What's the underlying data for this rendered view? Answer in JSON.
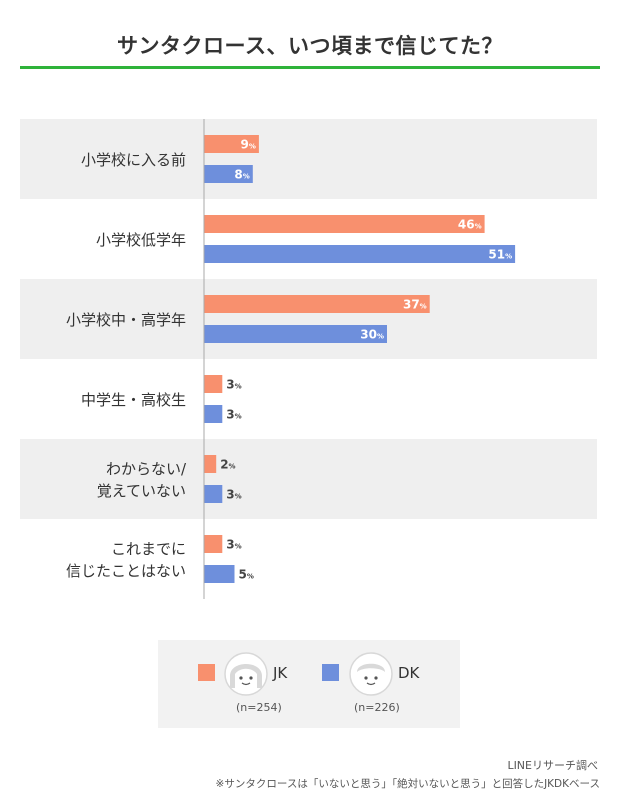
{
  "colors": {
    "background": "#ffffff",
    "band": "#efefef",
    "jk": "#f8906e",
    "dk": "#6e8fdc",
    "accent_rule": "#2eb33a",
    "axis": "#aaaaaa"
  },
  "chart_data": {
    "type": "bar",
    "orientation": "horizontal",
    "title": "サンタクロース、いつ頃まで信じてた？",
    "categories": [
      [
        "小学校に入る前"
      ],
      [
        "小学校低学年"
      ],
      [
        "小学校中・高学年"
      ],
      [
        "中学生・高校生"
      ],
      [
        "わからない/",
        "覚えていない"
      ],
      [
        "これまでに",
        "信じたことはない"
      ]
    ],
    "series": [
      {
        "name": "JK",
        "n_label": "(n=254)",
        "values": [
          9,
          46,
          37,
          3,
          2,
          3
        ]
      },
      {
        "name": "DK",
        "n_label": "(n=226)",
        "values": [
          8,
          51,
          30,
          3,
          3,
          5
        ]
      }
    ],
    "unit": "%",
    "xlim": [
      0,
      100
    ],
    "grid": false,
    "legend_position": "bottom-center"
  },
  "footer": {
    "source": "LINEリサーチ調べ",
    "note": "※サンタクロースは「いないと思う」「絶対いないと思う」と回答したJKDKベース"
  }
}
